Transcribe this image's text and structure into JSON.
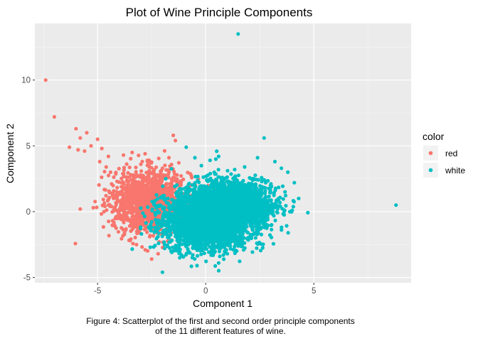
{
  "chart_data": {
    "type": "scatter",
    "title": "Plot of Wine Principle Components",
    "xlabel": "Component 1",
    "ylabel": "Component 2",
    "xlim": [
      -7.9,
      9.5
    ],
    "ylim": [
      -5.4,
      14.3
    ],
    "x_ticks": [
      -5,
      0,
      5
    ],
    "y_ticks": [
      -5,
      0,
      5,
      10
    ],
    "grid": true,
    "legend": {
      "title": "color",
      "position": "right",
      "entries": [
        {
          "label": "red",
          "color": "#F8766D"
        },
        {
          "label": "white",
          "color": "#00BFC4"
        }
      ]
    },
    "series": [
      {
        "name": "red",
        "color": "#F8766D",
        "clusters": [
          {
            "cx": -2.5,
            "cy": 0.8,
            "sx": 0.9,
            "sy": 1.15,
            "n": 1500
          }
        ],
        "points": [
          [
            -7.4,
            10.0
          ],
          [
            -7.0,
            7.2
          ],
          [
            -6.0,
            6.3
          ],
          [
            -5.5,
            6.0
          ],
          [
            -5.8,
            5.6
          ],
          [
            -6.3,
            4.9
          ],
          [
            -5.0,
            5.5
          ],
          [
            -4.8,
            4.8
          ],
          [
            -5.3,
            5.0
          ],
          [
            -5.6,
            4.6
          ],
          [
            -4.5,
            4.2
          ],
          [
            -5.9,
            4.7
          ],
          [
            -4.9,
            3.8
          ],
          [
            -4.6,
            3.4
          ],
          [
            -5.2,
            0.3
          ],
          [
            -4.7,
            0.0
          ],
          [
            -5.8,
            0.2
          ],
          [
            -4.2,
            0.3
          ],
          [
            -3.9,
            1.9
          ],
          [
            -4.4,
            3.0
          ],
          [
            -1.5,
            5.8
          ],
          [
            -1.4,
            5.4
          ],
          [
            -3.8,
            4.3
          ],
          [
            -3.4,
            4.5
          ],
          [
            -3.0,
            3.6
          ],
          [
            -4.1,
            2.3
          ],
          [
            -4.3,
            1.2
          ],
          [
            -3.7,
            -1.4
          ],
          [
            -3.5,
            -2.2
          ],
          [
            -3.2,
            -2.5
          ],
          [
            -2.5,
            -3.6
          ],
          [
            -2.2,
            -3.2
          ],
          [
            -2.8,
            -2.9
          ],
          [
            -1.2,
            -2.4
          ],
          [
            -0.9,
            -1.8
          ],
          [
            -1.7,
            4.1
          ],
          [
            -2.7,
            3.9
          ],
          [
            -2.0,
            3.3
          ],
          [
            -3.2,
            2.8
          ],
          [
            -4.0,
            0.8
          ]
        ]
      },
      {
        "name": "white",
        "color": "#00BFC4",
        "clusters": [
          {
            "cx": -0.1,
            "cy": -0.9,
            "sx": 0.9,
            "sy": 1.0,
            "rot": 0.3,
            "n": 2000
          },
          {
            "cx": 1.3,
            "cy": 0.6,
            "sx": 0.85,
            "sy": 0.85,
            "rot": 0.5,
            "n": 1600
          },
          {
            "cx": 0.5,
            "cy": -0.2,
            "sx": 1.25,
            "sy": 1.25,
            "rot": 0.4,
            "n": 900
          }
        ],
        "points": [
          [
            1.5,
            13.5
          ],
          [
            8.8,
            0.5
          ],
          [
            2.7,
            5.6
          ],
          [
            -0.9,
            4.9
          ],
          [
            -0.5,
            4.1
          ],
          [
            0.2,
            3.9
          ],
          [
            0.6,
            4.2
          ],
          [
            -0.2,
            3.5
          ],
          [
            3.2,
            3.8
          ],
          [
            3.5,
            3.3
          ],
          [
            3.8,
            3.0
          ],
          [
            4.1,
            2.2
          ],
          [
            4.3,
            1.0
          ],
          [
            4.0,
            0.1
          ],
          [
            3.6,
            -0.2
          ],
          [
            -2.0,
            -4.6
          ],
          [
            -1.2,
            -3.5
          ],
          [
            -0.4,
            -4.1
          ],
          [
            0.6,
            -3.9
          ],
          [
            1.0,
            -3.2
          ],
          [
            -1.6,
            -3.0
          ],
          [
            -1.9,
            -2.5
          ],
          [
            -1.0,
            0.2
          ],
          [
            -1.5,
            0.6
          ],
          [
            2.4,
            4.1
          ],
          [
            1.8,
            3.4
          ],
          [
            3.0,
            2.0
          ],
          [
            2.6,
            -1.2
          ],
          [
            1.7,
            -2.3
          ],
          [
            -0.8,
            -3.0
          ]
        ]
      }
    ],
    "caption": [
      "Figure 4: Scatterplot of the first and second order principle components",
      "of the 11 different features of wine."
    ]
  }
}
